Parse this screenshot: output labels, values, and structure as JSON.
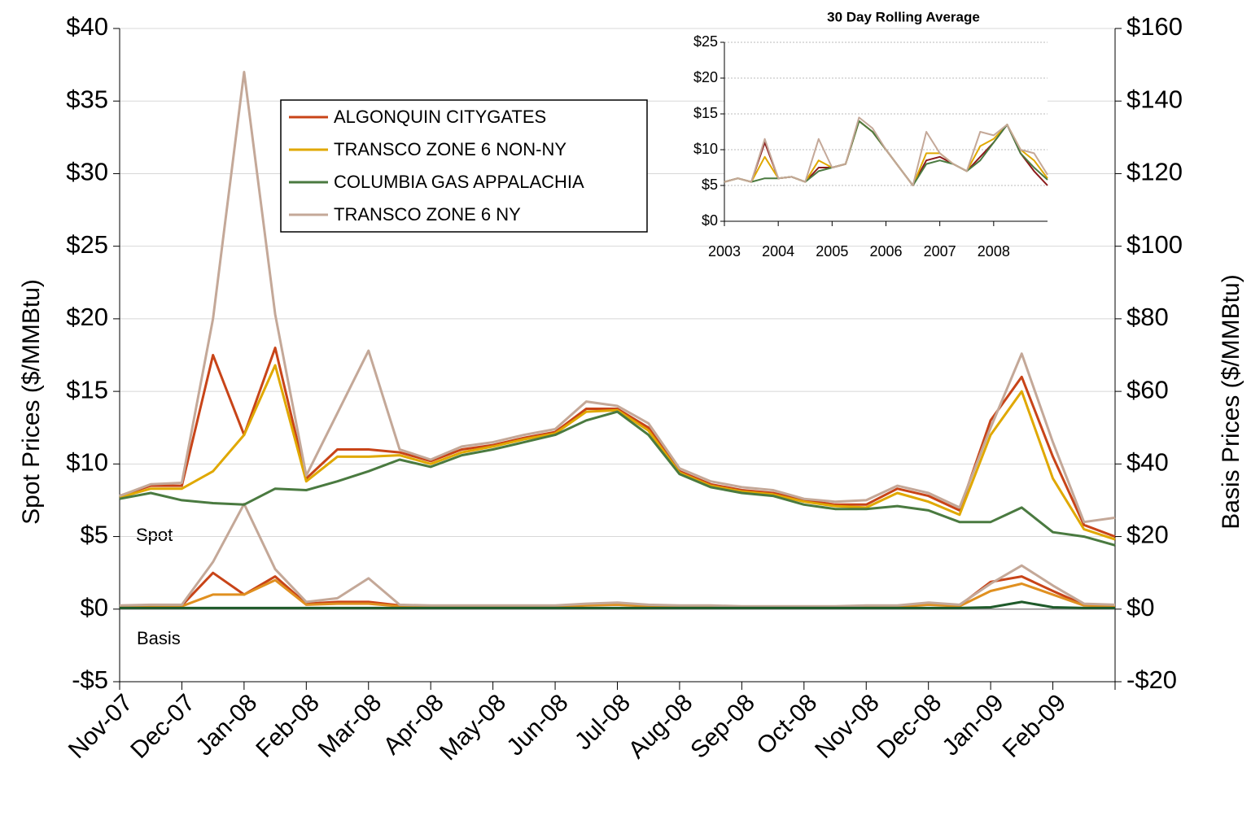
{
  "chart_data": [
    {
      "type": "line",
      "y_label": "Spot Prices ($/MMBtu)",
      "y2_label": "Basis Prices ($/MMBtu)",
      "annotations": [
        "Spot",
        "Basis"
      ],
      "grid": true,
      "xlim": [
        0,
        16
      ],
      "xticks": [
        {
          "value": 0,
          "label": "Nov-07"
        },
        {
          "value": 1,
          "label": "Dec-07"
        },
        {
          "value": 2,
          "label": "Jan-08"
        },
        {
          "value": 3,
          "label": "Feb-08"
        },
        {
          "value": 4,
          "label": "Mar-08"
        },
        {
          "value": 5,
          "label": "Apr-08"
        },
        {
          "value": 6,
          "label": "May-08"
        },
        {
          "value": 7,
          "label": "Jun-08"
        },
        {
          "value": 8,
          "label": "Jul-08"
        },
        {
          "value": 9,
          "label": "Aug-08"
        },
        {
          "value": 10,
          "label": "Sep-08"
        },
        {
          "value": 11,
          "label": "Oct-08"
        },
        {
          "value": 12,
          "label": "Nov-08"
        },
        {
          "value": 13,
          "label": "Dec-08"
        },
        {
          "value": 14,
          "label": "Jan-09"
        },
        {
          "value": 15,
          "label": "Feb-09"
        }
      ],
      "ylim": [
        -5,
        40
      ],
      "yticks": [
        {
          "value": -5,
          "label": "-$5"
        },
        {
          "value": 0,
          "label": "$0"
        },
        {
          "value": 5,
          "label": "$5"
        },
        {
          "value": 10,
          "label": "$10"
        },
        {
          "value": 15,
          "label": "$15"
        },
        {
          "value": 20,
          "label": "$20"
        },
        {
          "value": 25,
          "label": "$25"
        },
        {
          "value": 30,
          "label": "$30"
        },
        {
          "value": 35,
          "label": "$35"
        },
        {
          "value": 40,
          "label": "$40"
        }
      ],
      "y2lim": [
        -20,
        160
      ],
      "y2ticks": [
        {
          "value": -20,
          "label": "-$20"
        },
        {
          "value": 0,
          "label": "$0"
        },
        {
          "value": 20,
          "label": "$20"
        },
        {
          "value": 40,
          "label": "$40"
        },
        {
          "value": 60,
          "label": "$60"
        },
        {
          "value": 80,
          "label": "$80"
        },
        {
          "value": 100,
          "label": "$100"
        },
        {
          "value": 120,
          "label": "$120"
        },
        {
          "value": 140,
          "label": "$140"
        },
        {
          "value": 160,
          "label": "$160"
        }
      ],
      "x": [
        0,
        0.5,
        1,
        1.5,
        2,
        2.5,
        3,
        3.5,
        4,
        4.5,
        5,
        5.5,
        6,
        6.5,
        7,
        7.5,
        8,
        8.5,
        9,
        9.5,
        10,
        10.5,
        11,
        11.5,
        12,
        12.5,
        13,
        13.5,
        14,
        14.5,
        15,
        15.5,
        16
      ],
      "series": [
        {
          "name": "ALGONQUIN CITYGATES",
          "color": "#c84418",
          "values": [
            7.8,
            8.5,
            8.5,
            17.5,
            12,
            18,
            9,
            11,
            11,
            10.8,
            10.2,
            11,
            11.3,
            11.8,
            12.2,
            13.8,
            13.8,
            12.5,
            9.5,
            8.6,
            8.2,
            8,
            7.5,
            7.2,
            7.2,
            8.3,
            7.8,
            6.8,
            13,
            16,
            10.5,
            5.8,
            5
          ]
        },
        {
          "name": "TRANSCO ZONE 6 NON-NY",
          "color": "#e0a800",
          "values": [
            7.7,
            8.3,
            8.3,
            9.5,
            12,
            16.8,
            8.8,
            10.5,
            10.5,
            10.6,
            10,
            10.8,
            11.2,
            11.7,
            12.1,
            13.6,
            13.7,
            12.3,
            9.4,
            8.5,
            8.1,
            7.9,
            7.4,
            7.1,
            7,
            8,
            7.4,
            6.5,
            12,
            15,
            9,
            5.5,
            4.8
          ]
        },
        {
          "name": "COLUMBIA GAS APPALACHIA",
          "color": "#4a7a40",
          "values": [
            7.6,
            8,
            7.5,
            7.3,
            7.2,
            8.3,
            8.2,
            8.8,
            9.5,
            10.3,
            9.8,
            10.6,
            11,
            11.5,
            12,
            13,
            13.6,
            12,
            9.3,
            8.4,
            8,
            7.8,
            7.2,
            6.9,
            6.9,
            7.1,
            6.8,
            6,
            6,
            7,
            5.3,
            5,
            4.4
          ]
        },
        {
          "name": "TRANSCO ZONE 6 NY",
          "color": "#c4a898",
          "values": [
            7.8,
            8.6,
            8.7,
            20,
            37,
            20.3,
            9.2,
            13.5,
            17.8,
            11,
            10.3,
            11.2,
            11.5,
            12,
            12.4,
            14.3,
            14,
            12.8,
            9.7,
            8.8,
            8.4,
            8.2,
            7.6,
            7.4,
            7.5,
            8.5,
            8,
            7,
            12.5,
            17.6,
            11.5,
            6,
            6.3
          ]
        }
      ],
      "basis_series": [
        {
          "color": "#c84418",
          "axis": "y2",
          "values": [
            0.8,
            1,
            1,
            10,
            4,
            9,
            1.5,
            2,
            2,
            1,
            0.8,
            0.8,
            0.8,
            0.8,
            0.8,
            1.2,
            1.5,
            1,
            0.8,
            0.8,
            0.5,
            0.5,
            0.5,
            0.5,
            0.8,
            0.8,
            1.5,
            1,
            7.5,
            9,
            5,
            1.2,
            1
          ]
        },
        {
          "color": "#e09020",
          "axis": "y2",
          "values": [
            0.5,
            0.6,
            0.8,
            4,
            4,
            8,
            1.2,
            1.5,
            1.5,
            0.8,
            0.6,
            0.6,
            0.6,
            0.6,
            0.6,
            1,
            1.2,
            0.8,
            0.6,
            0.6,
            0.4,
            0.4,
            0.4,
            0.4,
            0.6,
            0.6,
            1.2,
            0.8,
            5,
            7,
            4,
            1,
            0.8
          ]
        },
        {
          "color": "#c4a898",
          "axis": "y2",
          "values": [
            1,
            1.2,
            1.2,
            13,
            29,
            11,
            2,
            3,
            8.5,
            1.2,
            1,
            1,
            1,
            1,
            1,
            1.5,
            1.8,
            1.2,
            1,
            1,
            0.8,
            0.8,
            0.8,
            0.8,
            1,
            1,
            1.8,
            1.2,
            7,
            12,
            6.5,
            1.5,
            1.2
          ]
        },
        {
          "color": "#1e5a2a",
          "axis": "y2",
          "values": [
            0.3,
            0.3,
            0.3,
            0.3,
            0.3,
            0.3,
            0.3,
            0.3,
            0.3,
            0.3,
            0.3,
            0.3,
            0.3,
            0.3,
            0.3,
            0.3,
            0.3,
            0.3,
            0.3,
            0.3,
            0.3,
            0.3,
            0.3,
            0.3,
            0.3,
            0.3,
            0.3,
            0.3,
            0.5,
            2,
            0.5,
            0.3,
            0.3
          ]
        }
      ]
    },
    {
      "type": "line",
      "title": "30 Day Rolling Average",
      "grid": true,
      "xlim": [
        2003,
        2009
      ],
      "xticks": [
        2003,
        2004,
        2005,
        2006,
        2007,
        2008
      ],
      "ylim": [
        0,
        25
      ],
      "yticks": [
        {
          "value": 0,
          "label": "$0"
        },
        {
          "value": 5,
          "label": "$5"
        },
        {
          "value": 10,
          "label": "$10"
        },
        {
          "value": 15,
          "label": "$15"
        },
        {
          "value": 20,
          "label": "$20"
        },
        {
          "value": 25,
          "label": "$25"
        }
      ],
      "x": [
        2003,
        2003.25,
        2003.5,
        2003.75,
        2004,
        2004.25,
        2004.5,
        2004.75,
        2005,
        2005.25,
        2005.5,
        2005.75,
        2006,
        2006.25,
        2006.5,
        2006.75,
        2007,
        2007.25,
        2007.5,
        2007.75,
        2008,
        2008.25,
        2008.5,
        2008.75,
        2009
      ],
      "series": [
        {
          "color": "#8b1a1a",
          "values": [
            5.5,
            6,
            5.5,
            11,
            6,
            6.2,
            5.5,
            7.5,
            7.5,
            8,
            14,
            12.5,
            10,
            7.5,
            5,
            8.5,
            9,
            8,
            7,
            9,
            11,
            13.5,
            9.5,
            7,
            5
          ]
        },
        {
          "color": "#e0a800",
          "values": [
            5.5,
            6,
            5.5,
            9,
            6,
            6.2,
            5.5,
            8.5,
            7.5,
            8,
            14,
            12.5,
            10,
            7.5,
            5,
            9.5,
            9.5,
            8,
            7,
            10.5,
            11.5,
            13.5,
            10,
            8.5,
            6
          ]
        },
        {
          "color": "#4a7a40",
          "values": [
            5.5,
            6,
            5.5,
            6,
            6,
            6.2,
            5.5,
            7,
            7.5,
            8,
            14,
            12.5,
            10,
            7.5,
            5,
            8,
            8.5,
            8,
            7,
            8.5,
            11,
            13.5,
            9.5,
            7.5,
            5.8
          ]
        },
        {
          "color": "#c4a898",
          "values": [
            5.5,
            6,
            5.5,
            11.5,
            6,
            6.2,
            5.5,
            11.5,
            7.5,
            8,
            14.5,
            13,
            10,
            7.5,
            5,
            12.5,
            9.5,
            8,
            7,
            12.5,
            12,
            13.5,
            10,
            9.5,
            6.5
          ]
        }
      ]
    }
  ]
}
